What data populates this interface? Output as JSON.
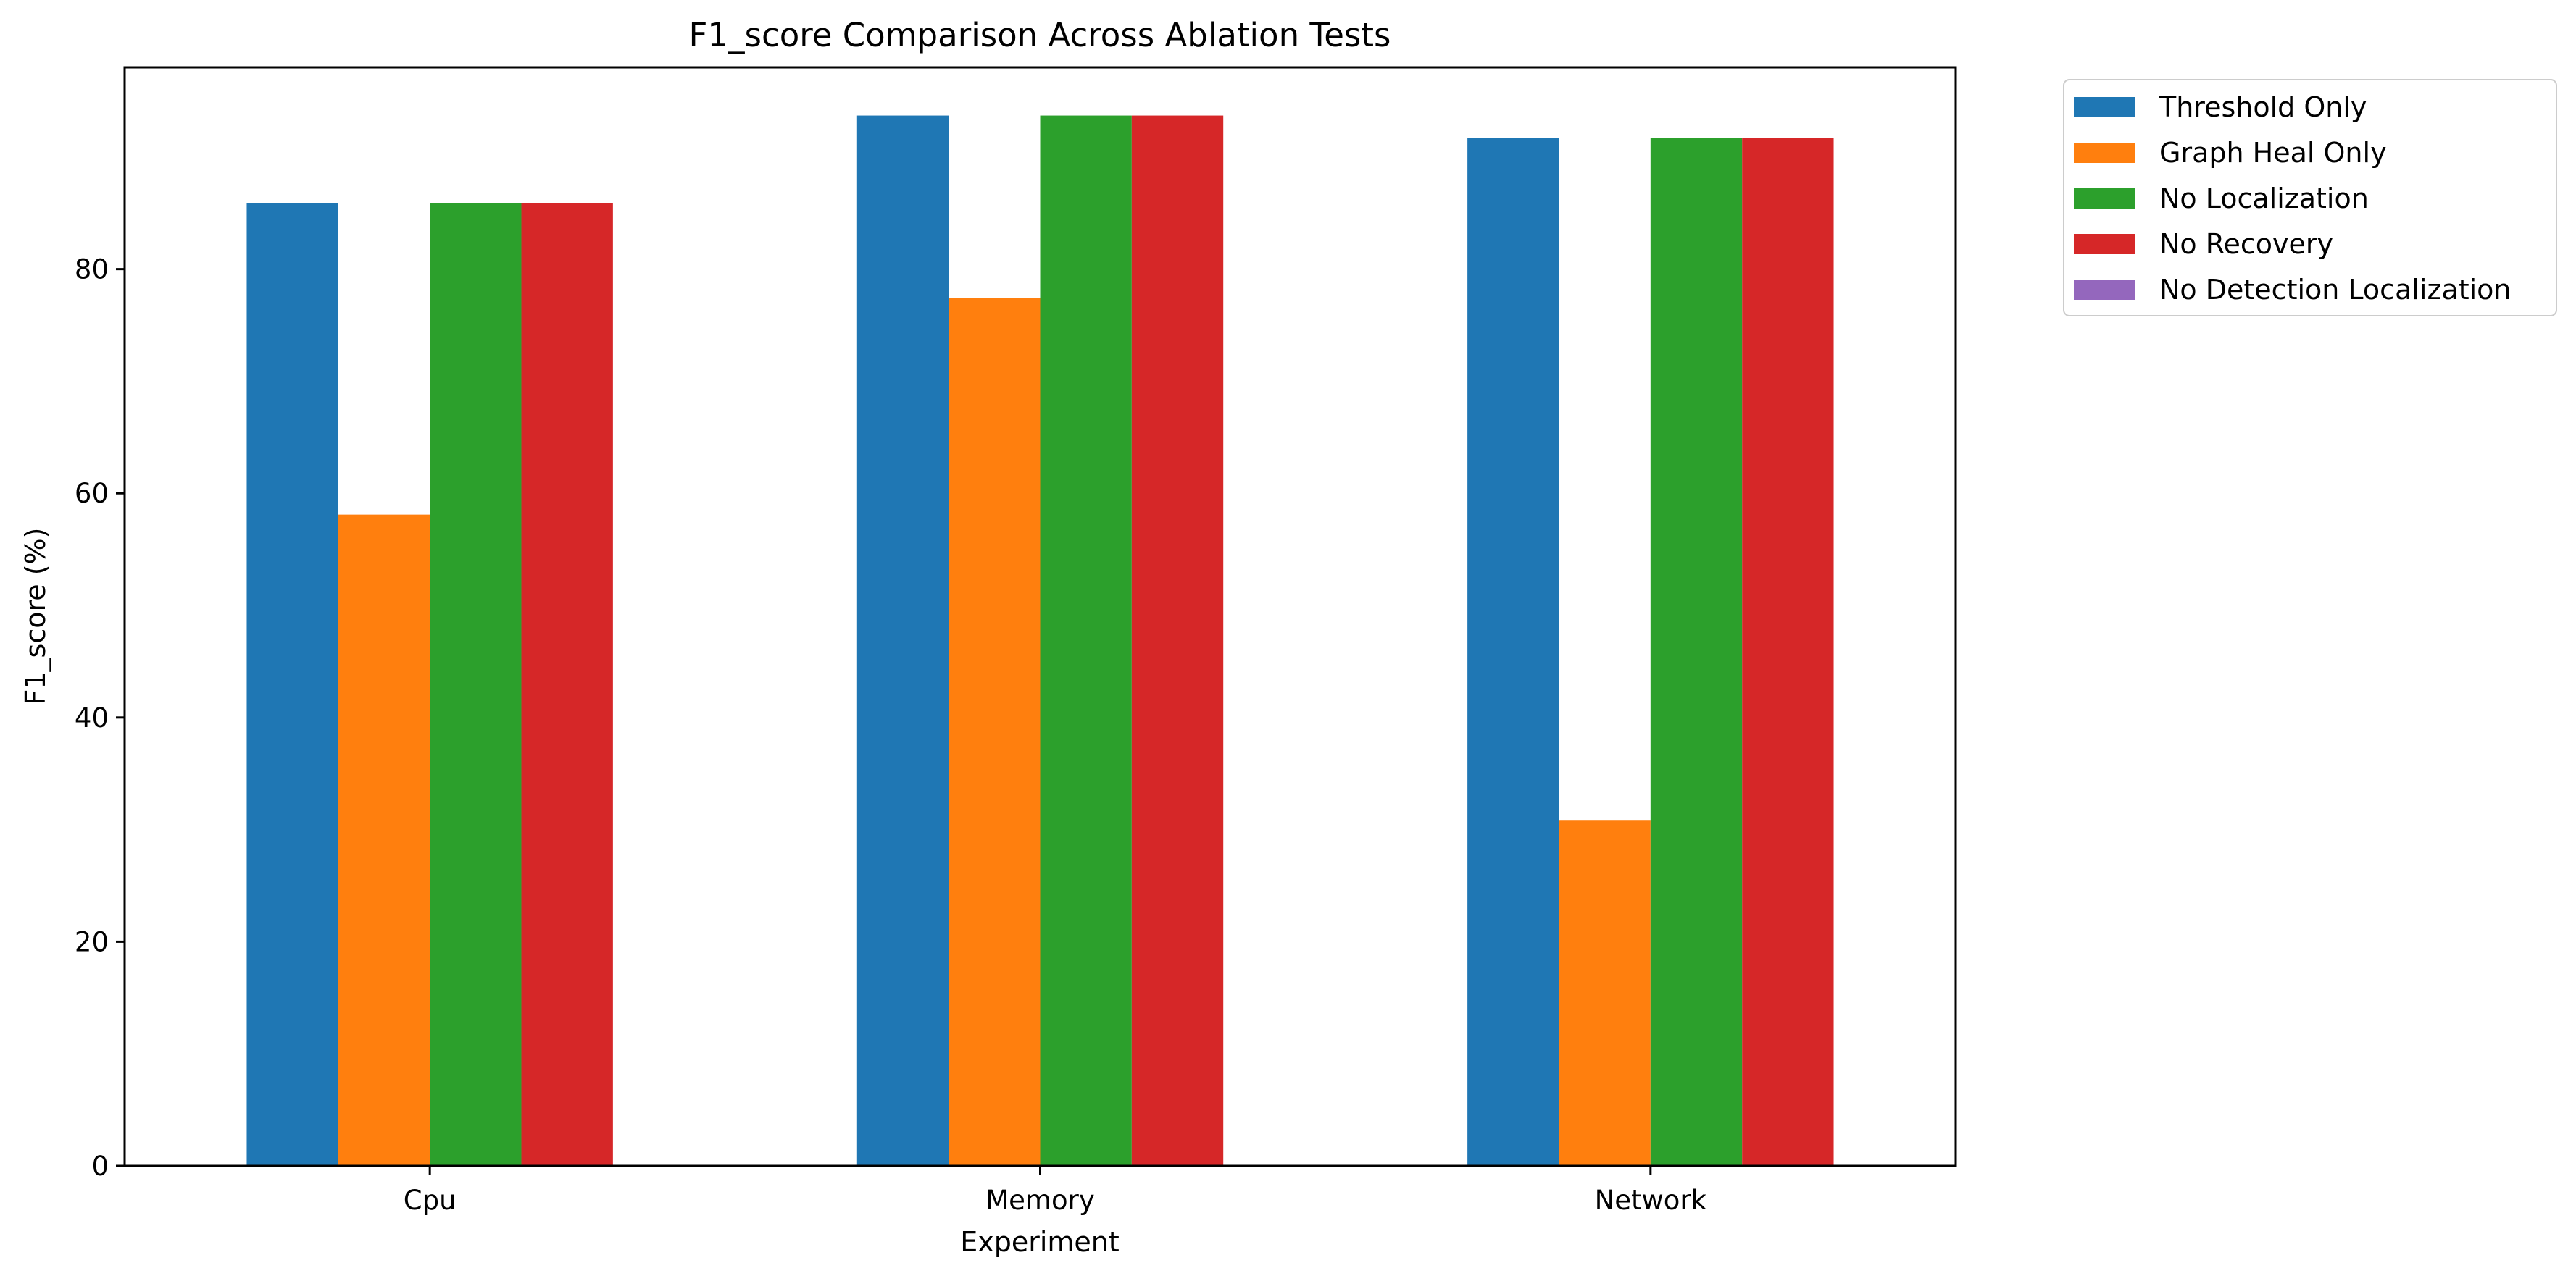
{
  "chart_data": {
    "type": "bar",
    "title": "F1_score Comparison Across Ablation Tests",
    "xlabel": "Experiment",
    "ylabel": "F1_score (%)",
    "categories": [
      "Cpu",
      "Memory",
      "Network"
    ],
    "ylim": [
      0,
      98
    ],
    "yticks": [
      0,
      20,
      40,
      60,
      80
    ],
    "grid": false,
    "legend_position": "outside-top-right",
    "series": [
      {
        "name": "Threshold Only",
        "color": "#1f77b4",
        "values": [
          85.9,
          93.7,
          91.7
        ]
      },
      {
        "name": "Graph Heal Only",
        "color": "#ff7f0e",
        "values": [
          58.1,
          77.4,
          30.8
        ]
      },
      {
        "name": "No Localization",
        "color": "#2ca02c",
        "values": [
          85.9,
          93.7,
          91.7
        ]
      },
      {
        "name": "No Recovery",
        "color": "#d62728",
        "values": [
          85.9,
          93.7,
          91.7
        ]
      },
      {
        "name": "No Detection Localization",
        "color": "#9467bd",
        "values": [
          0,
          0,
          0
        ]
      }
    ]
  }
}
